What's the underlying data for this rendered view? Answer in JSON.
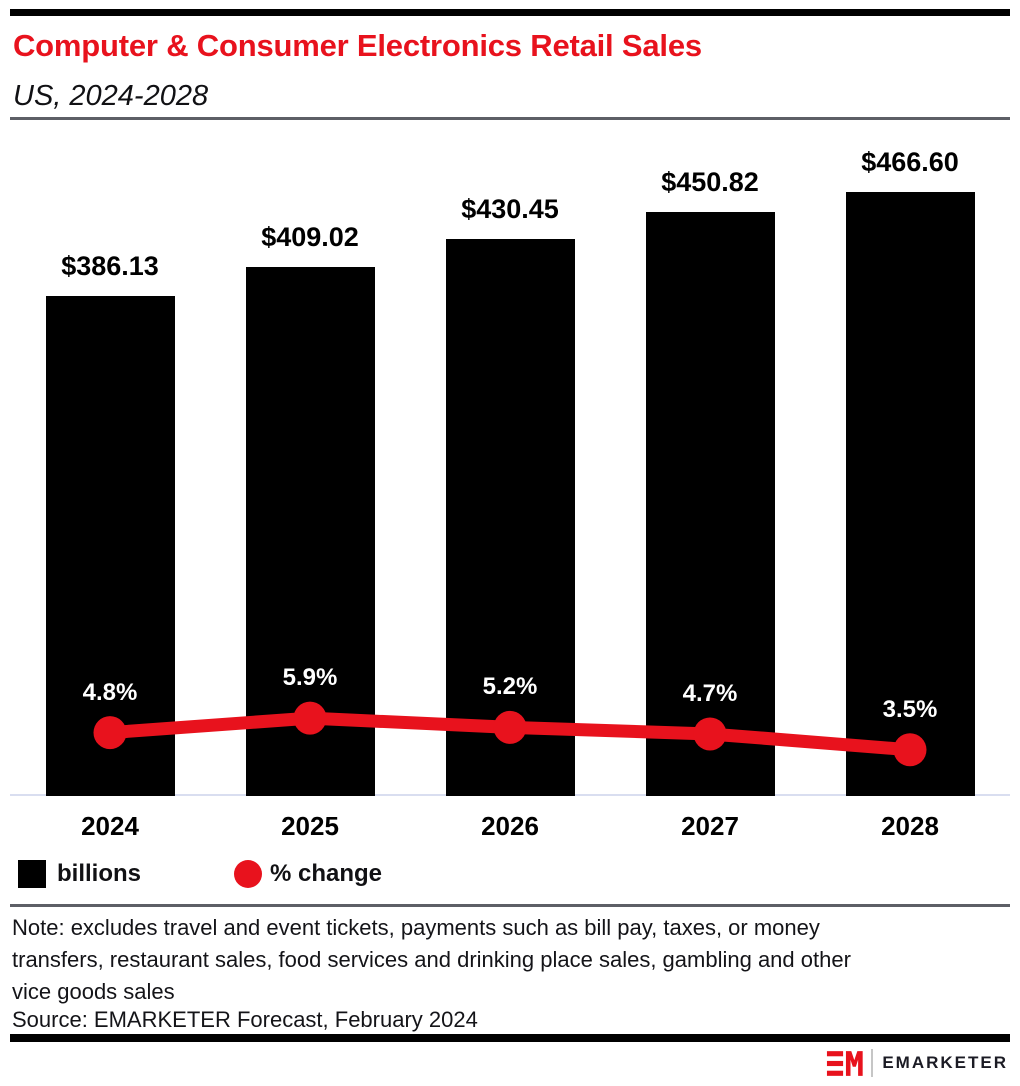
{
  "header": {
    "title": "Computer & Consumer Electronics Retail Sales",
    "subtitle": "US, 2024-2028"
  },
  "chart_data": {
    "type": "bar",
    "title": "Computer & Consumer Electronics Retail Sales",
    "subtitle": "US, 2024-2028",
    "categories": [
      "2024",
      "2025",
      "2026",
      "2027",
      "2028"
    ],
    "series": [
      {
        "name": "billions",
        "type": "bar",
        "values": [
          386.13,
          409.02,
          430.45,
          450.82,
          466.6
        ],
        "labels": [
          "$386.13",
          "$409.02",
          "$430.45",
          "$450.82",
          "$466.60"
        ],
        "color": "#000000"
      },
      {
        "name": "% change",
        "type": "line",
        "values": [
          4.8,
          5.9,
          5.2,
          4.7,
          3.5
        ],
        "labels": [
          "4.8%",
          "5.9%",
          "5.2%",
          "4.7%",
          "3.5%"
        ],
        "color": "#e8121d"
      }
    ],
    "xlabel": "",
    "ylabel": "",
    "ylim": [
      0,
      480
    ],
    "grid": false,
    "legend_position": "bottom-left",
    "legend": [
      {
        "label": "billions",
        "swatch": "square",
        "color": "#000000"
      },
      {
        "label": "% change",
        "swatch": "circle",
        "color": "#e8121d"
      }
    ]
  },
  "footer": {
    "note_lines": [
      "Note: excludes travel and event tickets, payments such as bill pay, taxes, or money",
      "transfers, restaurant sales, food services and drinking place sales, gambling and other",
      "vice goods sales"
    ],
    "source": "Source: EMARKETER Forecast, February 2024",
    "logo_text": "EMARKETER"
  },
  "colors": {
    "accent_red": "#e8121d",
    "bar_black": "#000000",
    "divider_gray": "#5d5f66",
    "baseline_lavender": "#d9def0",
    "text_dark": "#141418"
  }
}
